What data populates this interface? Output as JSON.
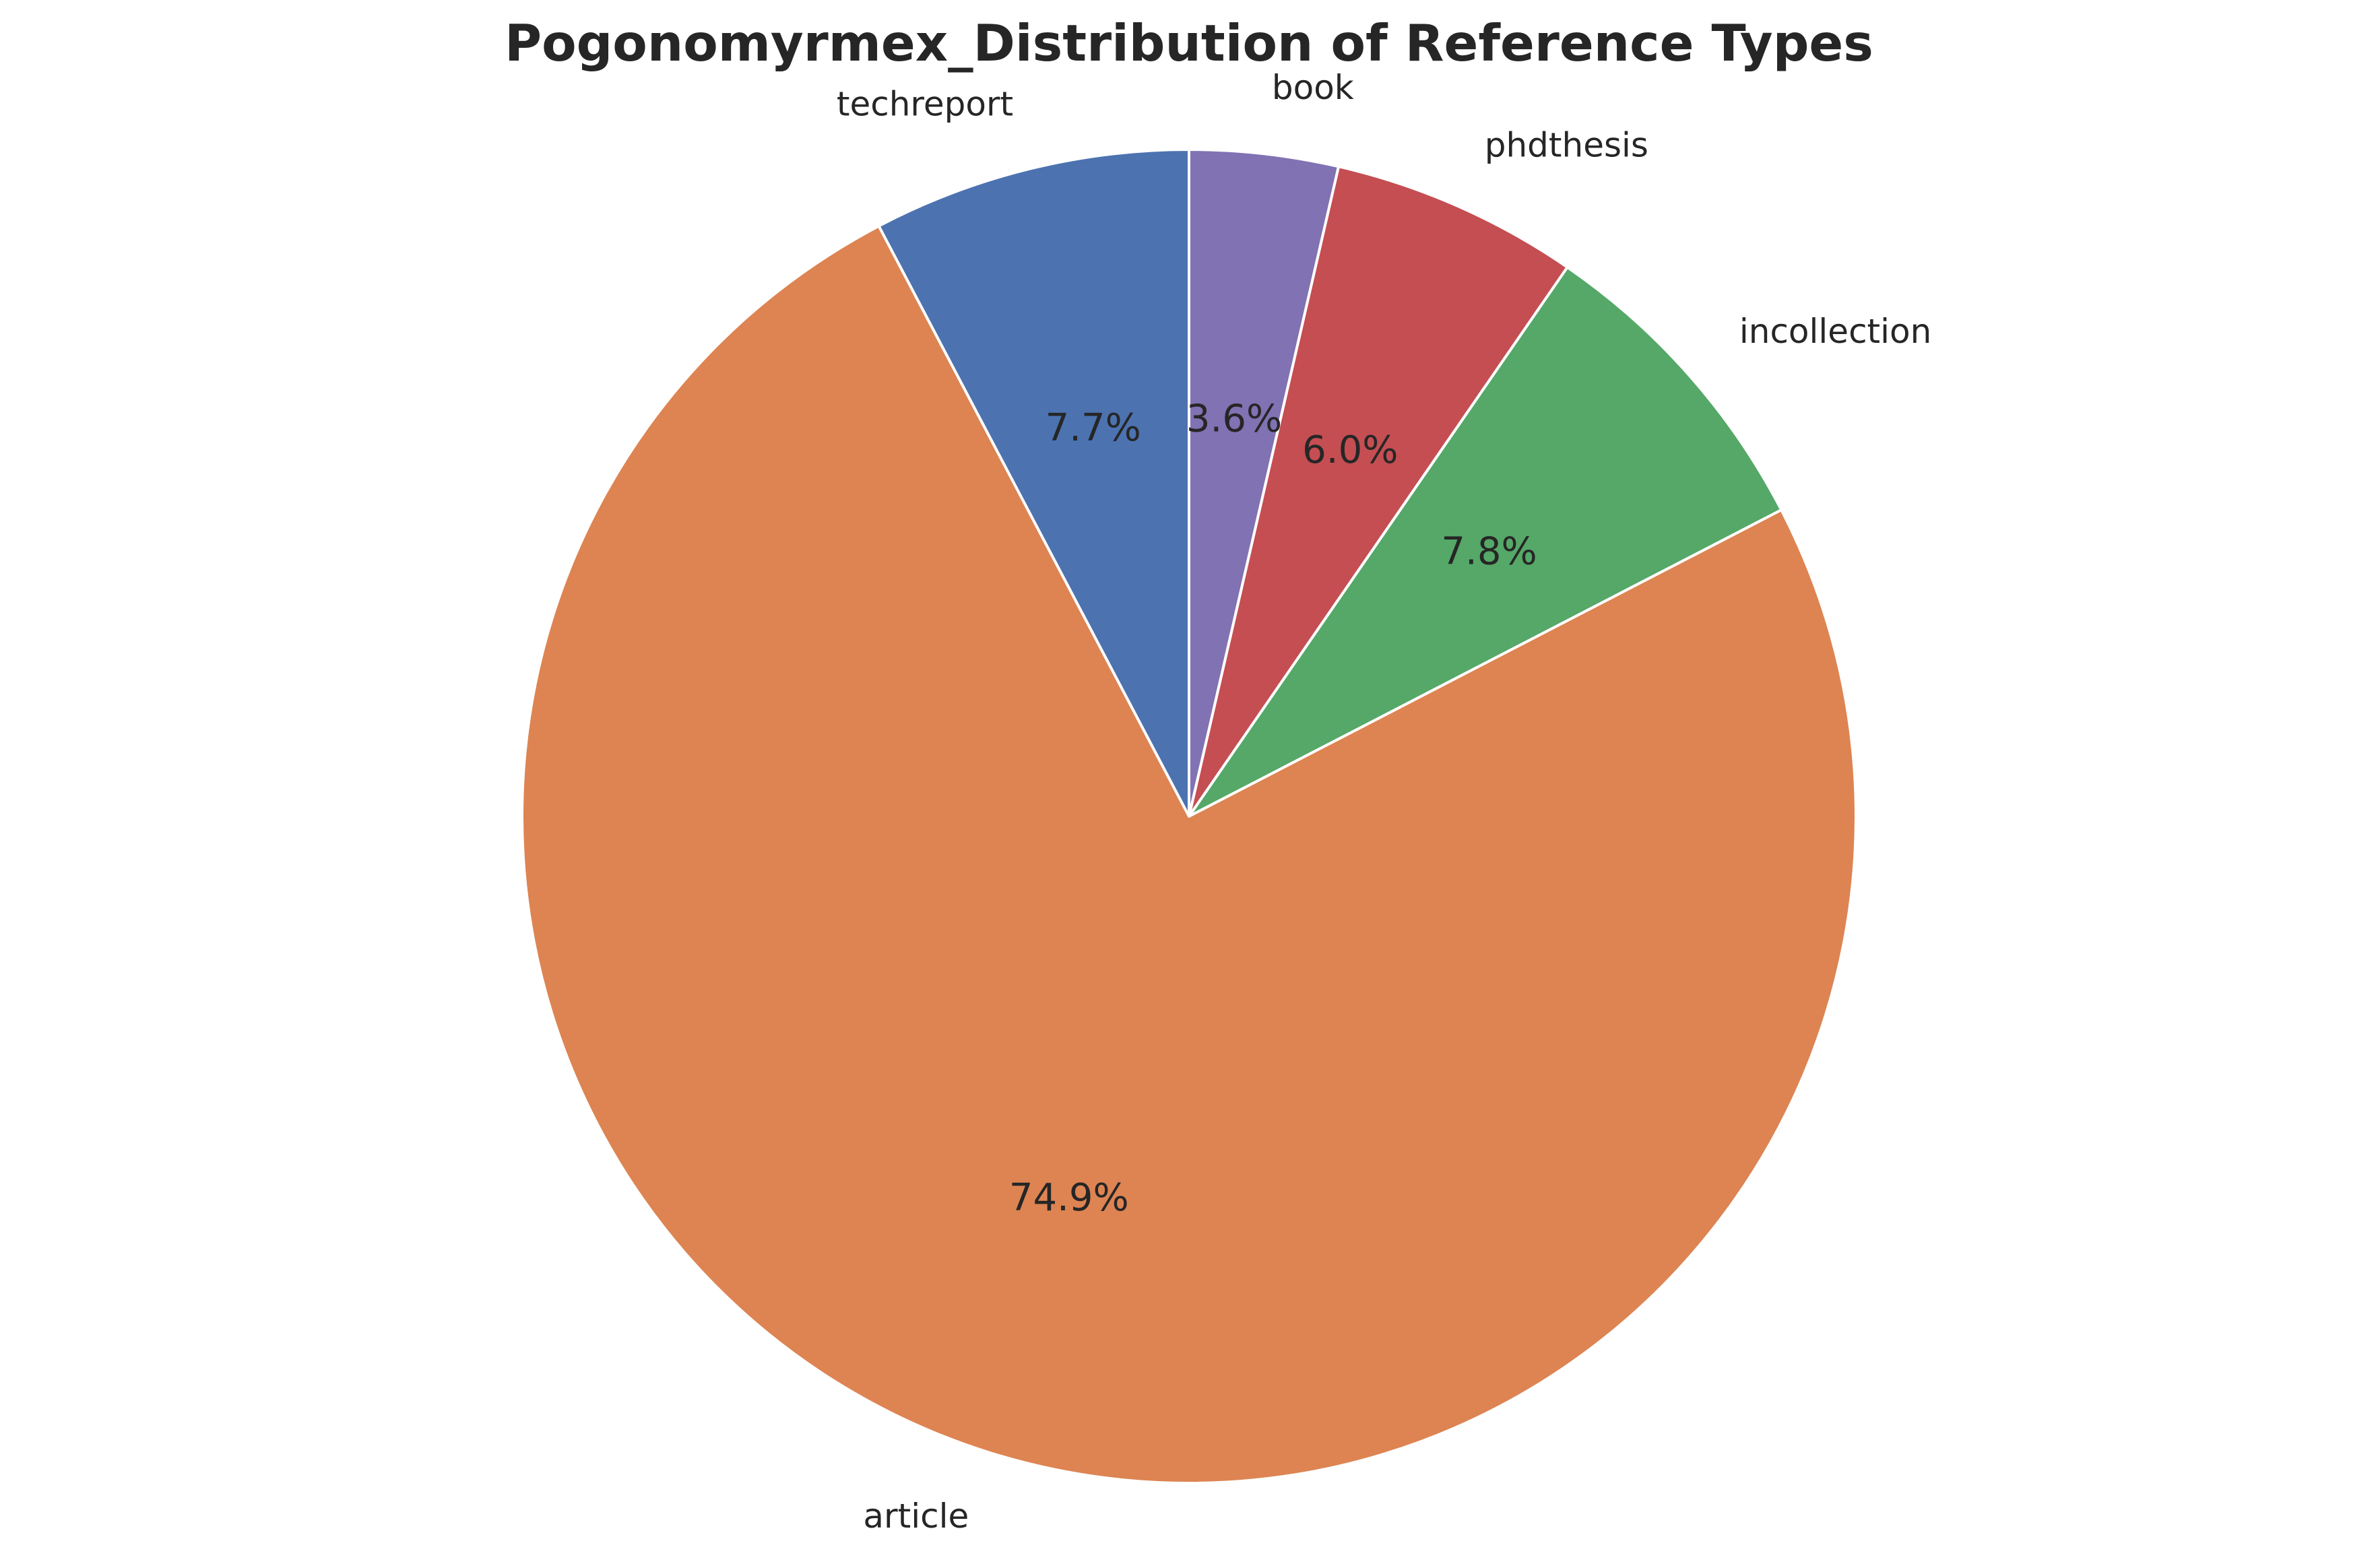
{
  "chart_data": {
    "type": "pie",
    "title": "Pogonomyrmex_Distribution of Reference Types",
    "categories": [
      "techreport",
      "article",
      "incollection",
      "phdthesis",
      "book"
    ],
    "values": [
      7.7,
      74.9,
      7.8,
      6.0,
      3.6
    ],
    "value_labels": [
      "7.7%",
      "74.9%",
      "7.8%",
      "6.0%",
      "3.6%"
    ],
    "colors": [
      "#4c72b0",
      "#dd8452",
      "#55a868",
      "#c44e52",
      "#8172b3"
    ],
    "start_angle_deg": 90,
    "direction": "counterclockwise",
    "legend": "none"
  }
}
